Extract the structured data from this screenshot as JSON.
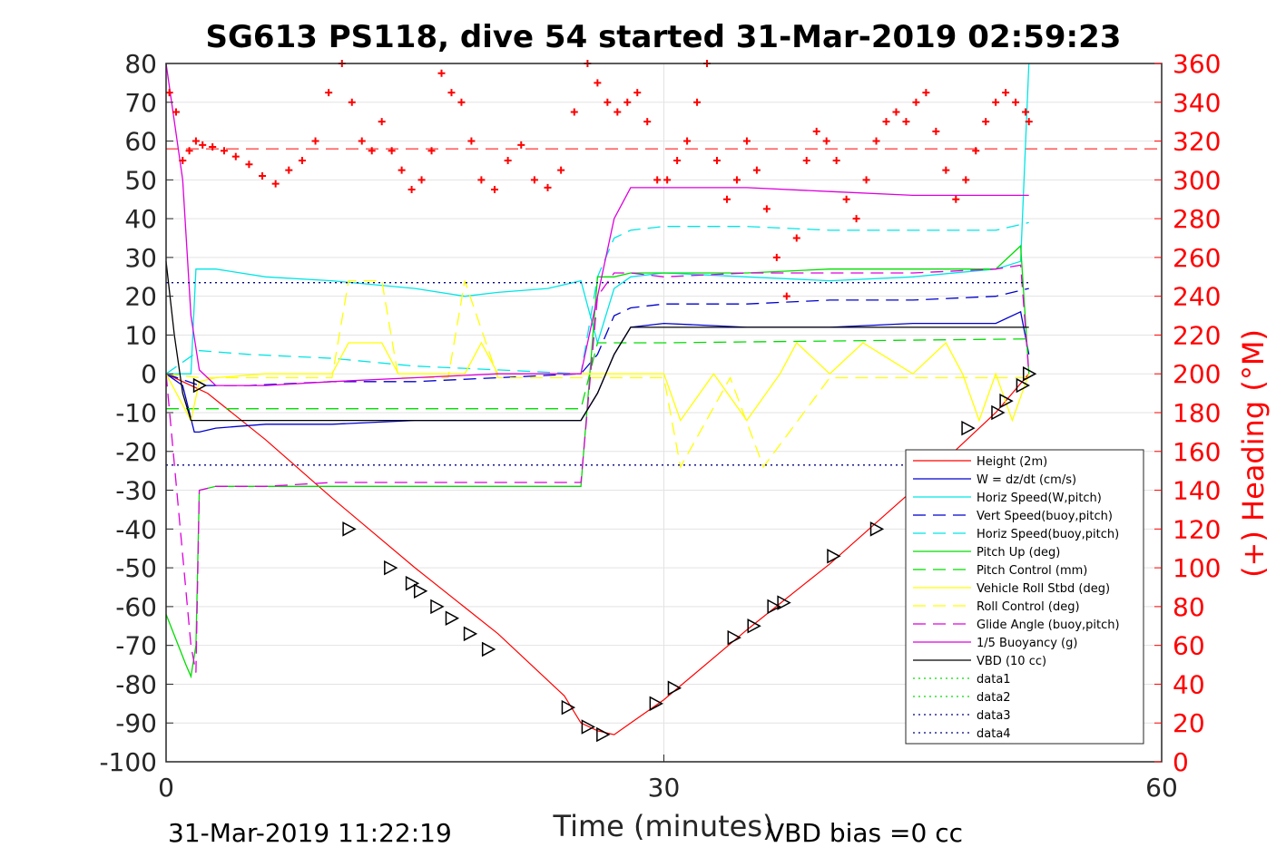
{
  "chart_data": {
    "type": "line",
    "title": "SG613 PS118, dive 54 started 31-Mar-2019 02:59:23",
    "xlabel": "Time (minutes)",
    "ylabel_right": "(+) Heading (°M)",
    "xlim": [
      0,
      60
    ],
    "ylim": [
      -100,
      80
    ],
    "ylim_right": [
      0,
      360
    ],
    "xticks": [
      "0",
      "30",
      "60"
    ],
    "yticks_left": [
      "80",
      "70",
      "60",
      "50",
      "40",
      "30",
      "20",
      "10",
      "0",
      "-10",
      "-20",
      "-30",
      "-40",
      "-50",
      "-60",
      "-70",
      "-80",
      "-90",
      "-100"
    ],
    "yticks_right": [
      "360",
      "340",
      "320",
      "300",
      "280",
      "260",
      "240",
      "220",
      "200",
      "180",
      "160",
      "140",
      "120",
      "100",
      "80",
      "60",
      "40",
      "20",
      "0"
    ],
    "grid": true,
    "legend_position": "bottom-right",
    "footer_left": "31-Mar-2019 11:22:19",
    "footer_right": "VBD bias =0 cc",
    "heading_mean_line": 58,
    "series": [
      {
        "name": "Height (2m)",
        "color": "#ff0000",
        "dash": "solid",
        "x": [
          0,
          1.5,
          2.5,
          6,
          10,
          15,
          20,
          24,
          25,
          26,
          27,
          28,
          30,
          35,
          40,
          45,
          50,
          52
        ],
        "y": [
          0,
          -3,
          -5,
          -17,
          -32,
          -50,
          -67,
          -83,
          -90,
          -92,
          -93,
          -90,
          -84,
          -66,
          -49,
          -30,
          -10,
          0
        ]
      },
      {
        "name": "W = dz/dt (cm/s)",
        "color": "#0000cd",
        "dash": "solid",
        "x": [
          0,
          1,
          1.7,
          2,
          3,
          6,
          10,
          15,
          20,
          25,
          26,
          27,
          28,
          30,
          35,
          40,
          45,
          50,
          51.5,
          52
        ],
        "y": [
          0,
          -3,
          -15,
          -15,
          -14,
          -13,
          -13,
          -12,
          -12,
          -12,
          -5,
          5,
          12,
          13,
          12,
          12,
          13,
          13,
          16,
          5
        ]
      },
      {
        "name": "Horiz Speed(W,pitch)",
        "color": "#00e5e5",
        "dash": "solid",
        "x": [
          0,
          1.5,
          1.8,
          2,
          3,
          6,
          10,
          15,
          18,
          20,
          23,
          25,
          26,
          27,
          28,
          30,
          35,
          40,
          45,
          50,
          51.5,
          52
        ],
        "y": [
          0,
          0,
          27,
          27,
          27,
          25,
          24,
          22,
          20,
          21,
          22,
          24,
          8,
          22,
          25,
          26,
          25,
          24,
          25,
          27,
          29,
          80
        ]
      },
      {
        "name": "Vert Speed(buoy,pitch)",
        "color": "#0000cd",
        "dash": "longdash",
        "x": [
          0,
          2,
          5,
          10,
          15,
          20,
          25,
          26,
          27,
          28,
          30,
          35,
          40,
          45,
          50,
          52
        ],
        "y": [
          0,
          -3,
          -3,
          -2,
          -2,
          -1,
          0,
          5,
          15,
          17,
          18,
          18,
          19,
          19,
          20,
          22
        ]
      },
      {
        "name": "Horiz Speed(buoy,pitch)",
        "color": "#00e5e5",
        "dash": "longdash",
        "x": [
          0,
          2,
          5,
          10,
          15,
          20,
          25,
          26,
          27,
          28,
          30,
          35,
          40,
          45,
          50,
          52
        ],
        "y": [
          0,
          6,
          5,
          4,
          2,
          1,
          0,
          25,
          35,
          37,
          38,
          38,
          37,
          37,
          37,
          39
        ]
      },
      {
        "name": "Pitch Up (deg)",
        "color": "#00dd00",
        "dash": "solid",
        "x": [
          0,
          1.2,
          1.5,
          1.8,
          2,
          3,
          6,
          10,
          15,
          20,
          25,
          26,
          27,
          28,
          30,
          35,
          40,
          45,
          50,
          51.5,
          52
        ],
        "y": [
          -62,
          -75,
          -78,
          -70,
          -30,
          -29,
          -29,
          -29,
          -29,
          -29,
          -29,
          25,
          25,
          26,
          26,
          26,
          27,
          27,
          27,
          33,
          0
        ]
      },
      {
        "name": "Pitch Control (mm)",
        "color": "#00dd00",
        "dash": "longdash",
        "x": [
          0,
          25,
          26,
          27,
          30,
          52
        ],
        "y": [
          -9,
          -9,
          8,
          8,
          8,
          9
        ]
      },
      {
        "name": "Vehicle Roll Stbd (deg)",
        "color": "#ffff00",
        "dash": "solid",
        "x": [
          0,
          1.5,
          2,
          3,
          6,
          10,
          11,
          12,
          13,
          14,
          16,
          18,
          19,
          20,
          25,
          26,
          27,
          30,
          31,
          33,
          35,
          37,
          38,
          40,
          42,
          45,
          47,
          48,
          49,
          50,
          51,
          52
        ],
        "y": [
          0,
          -12,
          -2,
          -1,
          0,
          0,
          8,
          8,
          8,
          0,
          0,
          0,
          8,
          0,
          0,
          0,
          0,
          0,
          -12,
          0,
          -12,
          0,
          8,
          0,
          8,
          0,
          8,
          0,
          -12,
          0,
          -12,
          0
        ]
      },
      {
        "name": "Roll Control (deg)",
        "color": "#ffff00",
        "dash": "longdash",
        "x": [
          0,
          2,
          10,
          11,
          13,
          14,
          17,
          18,
          20,
          25,
          30,
          31,
          34,
          36,
          40,
          45,
          52
        ],
        "y": [
          0,
          -1,
          -1,
          24,
          24,
          -1,
          -1,
          24,
          -1,
          -1,
          -1,
          -24,
          -1,
          -24,
          -1,
          -1,
          -1
        ]
      },
      {
        "name": "Glide Angle (buoy,pitch)",
        "color": "#dd00dd",
        "dash": "longdash",
        "x": [
          0,
          1.5,
          1.8,
          2,
          3,
          6,
          10,
          15,
          20,
          25,
          26,
          27,
          28,
          30,
          35,
          40,
          45,
          50,
          51.5,
          52
        ],
        "y": [
          0,
          -70,
          -77,
          -30,
          -29,
          -29,
          -28,
          -28,
          -28,
          -28,
          20,
          26,
          26,
          25,
          26,
          26,
          26,
          27,
          28,
          0
        ]
      },
      {
        "name": "1/5 Buoyancy (g)",
        "color": "#dd00dd",
        "dash": "solid",
        "x": [
          0,
          1,
          1.5,
          2,
          3,
          6,
          10,
          15,
          20,
          25,
          26,
          27,
          28,
          30,
          35,
          40,
          45,
          50,
          52
        ],
        "y": [
          80,
          50,
          15,
          1,
          -3,
          -3,
          -2,
          -1,
          0,
          0,
          20,
          40,
          48,
          48,
          48,
          47,
          46,
          46,
          46
        ]
      },
      {
        "name": "VBD (10 cc)",
        "color": "#000000",
        "dash": "solid",
        "x": [
          0,
          0.5,
          1,
          1.5,
          2,
          5,
          10,
          15,
          20,
          25,
          26,
          27,
          28,
          30,
          35,
          40,
          45,
          50,
          52
        ],
        "y": [
          29,
          10,
          -5,
          -12,
          -12,
          -12,
          -12,
          -12,
          -12,
          -12,
          -5,
          5,
          12,
          12,
          12,
          12,
          12,
          12,
          12
        ]
      },
      {
        "name": "data1",
        "color": "#00dd00",
        "dash": "dotted",
        "x": [],
        "y": []
      },
      {
        "name": "data2",
        "color": "#00dd00",
        "dash": "dotted",
        "x": [],
        "y": []
      },
      {
        "name": "data3",
        "color": "#000080",
        "dash": "dotted",
        "x": [
          0,
          52
        ],
        "y": [
          23.5,
          23.5
        ]
      },
      {
        "name": "data4",
        "color": "#000080",
        "dash": "dotted",
        "x": [
          0,
          52
        ],
        "y": [
          -23.5,
          -23.5
        ]
      }
    ],
    "heading_points": {
      "color": "#ff0000",
      "x": [
        0.2,
        0.6,
        1,
        1.4,
        1.8,
        2.2,
        2.8,
        3.5,
        4.2,
        5,
        5.8,
        6.6,
        7.4,
        8.2,
        9,
        9.8,
        10.6,
        11.2,
        11.8,
        12.4,
        13,
        13.6,
        14.2,
        14.8,
        15.4,
        16,
        16.6,
        17.2,
        17.8,
        18.4,
        19,
        19.8,
        20.6,
        21.4,
        22.2,
        23,
        23.8,
        24.6,
        25.4,
        26,
        26.6,
        27.2,
        27.8,
        28.4,
        29,
        29.6,
        30.2,
        30.8,
        31.4,
        32,
        32.6,
        33.2,
        33.8,
        34.4,
        35,
        35.6,
        36.2,
        36.8,
        37.4,
        38,
        38.6,
        39.2,
        39.8,
        40.4,
        41,
        41.6,
        42.2,
        42.8,
        43.4,
        44,
        44.6,
        45.2,
        45.8,
        46.4,
        47,
        47.6,
        48.2,
        48.8,
        49.4,
        50,
        50.6,
        51.2,
        51.8,
        52
      ],
      "y": [
        345,
        335,
        310,
        315,
        320,
        318,
        317,
        315,
        312,
        308,
        302,
        298,
        305,
        310,
        320,
        345,
        360,
        340,
        320,
        315,
        330,
        315,
        305,
        295,
        300,
        315,
        355,
        345,
        340,
        320,
        300,
        295,
        310,
        318,
        300,
        296,
        305,
        335,
        360,
        350,
        340,
        335,
        340,
        345,
        330,
        300,
        300,
        310,
        320,
        340,
        360,
        310,
        290,
        300,
        320,
        305,
        285,
        260,
        240,
        270,
        310,
        325,
        320,
        310,
        290,
        280,
        300,
        320,
        330,
        335,
        330,
        340,
        345,
        325,
        305,
        290,
        300,
        315,
        330,
        340,
        345,
        340,
        335,
        330
      ]
    },
    "markers": {
      "type": "triangle",
      "x": [
        2,
        11,
        13.5,
        14.8,
        15.3,
        16.3,
        17.2,
        18.3,
        19.4,
        24.2,
        25.4,
        26.3,
        29.5,
        30.6,
        34.2,
        35.4,
        36.6,
        37.2,
        40.2,
        42.8,
        45.2,
        48.3,
        50.1,
        50.6,
        51.6,
        52
      ],
      "y": [
        -3,
        -40,
        -50,
        -54,
        -56,
        -60,
        -63,
        -67,
        -71,
        -86,
        -91,
        -93,
        -85,
        -81,
        -68,
        -65,
        -60,
        -59,
        -47,
        -40,
        -32,
        -14,
        -10,
        -7,
        -3,
        0
      ]
    }
  }
}
